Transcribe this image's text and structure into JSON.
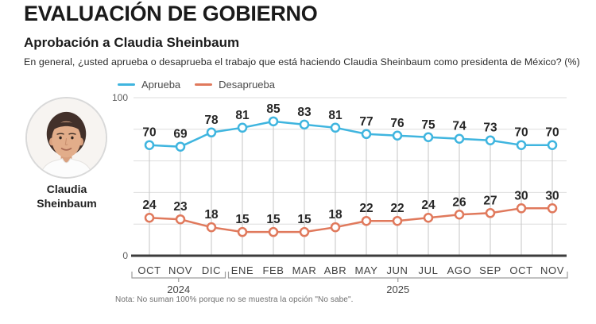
{
  "header": {
    "title": "EVALUACIÓN DE GOBIERNO",
    "subtitle": "Aprobación a Claudia Sheinbaum",
    "question": "En general, ¿usted aprueba o desaprueba el trabajo que está haciendo Claudia Sheinbaum como presidenta de México?  (%)"
  },
  "person": {
    "name_line1": "Claudia",
    "name_line2": "Sheinbaum"
  },
  "chart_data": {
    "type": "line",
    "title": "Aprobación a Claudia Sheinbaum",
    "categories": [
      "OCT",
      "NOV",
      "DIC",
      "ENE",
      "FEB",
      "MAR",
      "ABR",
      "MAY",
      "JUN",
      "JUL",
      "AGO",
      "SEP",
      "OCT",
      "NOV"
    ],
    "year_groups": [
      {
        "label": "2024",
        "from": 0,
        "to": 2
      },
      {
        "label": "2025",
        "from": 3,
        "to": 13
      }
    ],
    "series": [
      {
        "name": "Aprueba",
        "color": "#3FB5DF",
        "values": [
          70,
          69,
          78,
          81,
          85,
          83,
          81,
          77,
          76,
          75,
          74,
          73,
          70,
          70
        ]
      },
      {
        "name": "Desaprueba",
        "color": "#E0795C",
        "values": [
          24,
          23,
          18,
          15,
          15,
          15,
          18,
          22,
          22,
          24,
          26,
          27,
          30,
          30
        ]
      }
    ],
    "ylim": [
      0,
      100
    ],
    "grid_step": 20,
    "ytick_labels": [
      "0",
      "100"
    ],
    "legend_position": "top",
    "grid": "horizontal + per-point vertical drop lines",
    "note": "Nota: No suman 100% porque no se muestra la opción \"No sabe\"."
  }
}
